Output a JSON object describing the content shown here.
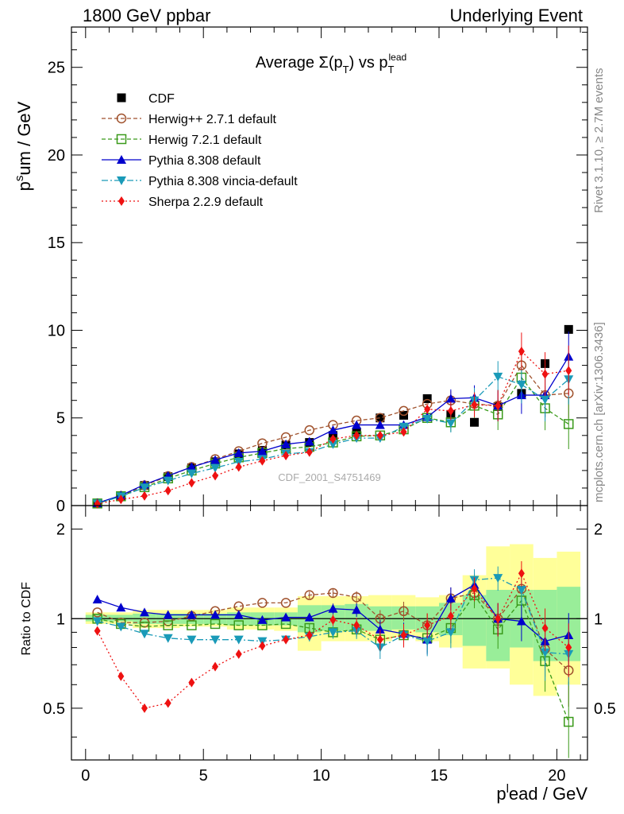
{
  "header": {
    "left": "1800 GeV ppbar",
    "right": "Underlying Event"
  },
  "side": {
    "rivet": "Rivet 3.1.10, ≥ 2.7M events",
    "mcplots": "mcplots.cern.ch [arXiv:1306.3436]"
  },
  "colors": {
    "cdf": "#000000",
    "herwigpp": "#a0522d",
    "herwig7": "#3a9a1a",
    "pythia": "#0000cc",
    "vincia": "#1a9ab8",
    "sherpa": "#ee1111",
    "band_outer": "#ffff99",
    "band_inner": "#99ee99"
  },
  "chart_data": [
    {
      "type": "line",
      "title": "Average Σ(p_T) vs p_T^lead",
      "watermark": "CDF_2001_S4751469",
      "ylabel": "p_T^sum / GeV",
      "ylim": [
        0,
        27.3
      ],
      "xlim": [
        -0.6,
        21.3
      ],
      "yticks": [
        0,
        5,
        10,
        15,
        20,
        25
      ],
      "legend_position": "top-left",
      "series": [
        {
          "name": "CDF",
          "key": "cdf",
          "x": [
            0.5,
            1.5,
            2.5,
            3.5,
            4.5,
            5.5,
            6.5,
            7.5,
            8.5,
            9.5,
            10.5,
            11.5,
            12.5,
            13.5,
            14.5,
            15.5,
            16.5,
            17.5,
            18.5,
            19.5,
            20.5
          ],
          "y": [
            0.12,
            0.55,
            1.15,
            1.65,
            2.15,
            2.5,
            2.95,
            3.15,
            3.45,
            3.6,
            4.0,
            4.2,
            5.0,
            5.15,
            6.1,
            5.2,
            4.75,
            5.65,
            6.4,
            8.1,
            10.05
          ]
        },
        {
          "name": "Herwig++ 2.7.1 default",
          "key": "herwigpp",
          "x": [
            0.5,
            1.5,
            2.5,
            3.5,
            4.5,
            5.5,
            6.5,
            7.5,
            8.5,
            9.5,
            10.5,
            11.5,
            12.5,
            13.5,
            14.5,
            15.5,
            16.5,
            17.5,
            18.5,
            19.5,
            20.5
          ],
          "y": [
            0.13,
            0.55,
            1.15,
            1.68,
            2.2,
            2.65,
            3.1,
            3.55,
            3.9,
            4.3,
            4.6,
            4.85,
            5.0,
            5.4,
            5.8,
            6.0,
            5.8,
            5.7,
            8.0,
            6.3,
            6.4
          ]
        },
        {
          "name": "Herwig 7.2.1 default",
          "key": "herwig7",
          "x": [
            0.5,
            1.5,
            2.5,
            3.5,
            4.5,
            5.5,
            6.5,
            7.5,
            8.5,
            9.5,
            10.5,
            11.5,
            12.5,
            13.5,
            14.5,
            15.5,
            16.5,
            17.5,
            18.5,
            19.5,
            20.5
          ],
          "y": [
            0.12,
            0.53,
            1.05,
            1.55,
            2.0,
            2.4,
            2.75,
            3.0,
            3.25,
            3.35,
            3.6,
            3.95,
            4.0,
            4.35,
            5.0,
            4.75,
            5.7,
            5.2,
            7.3,
            5.55,
            4.65
          ]
        },
        {
          "name": "Pythia 8.308 default",
          "key": "pythia",
          "x": [
            0.5,
            1.5,
            2.5,
            3.5,
            4.5,
            5.5,
            6.5,
            7.5,
            8.5,
            9.5,
            10.5,
            11.5,
            12.5,
            13.5,
            14.5,
            15.5,
            16.5,
            17.5,
            18.5,
            19.5,
            20.5
          ],
          "y": [
            0.14,
            0.58,
            1.2,
            1.7,
            2.2,
            2.6,
            3.0,
            3.1,
            3.5,
            3.65,
            4.3,
            4.6,
            4.6,
            4.6,
            5.05,
            6.1,
            6.15,
            5.7,
            6.3,
            6.3,
            8.5
          ]
        },
        {
          "name": "Pythia 8.308 vincia-default",
          "key": "vincia",
          "x": [
            0.5,
            1.5,
            2.5,
            3.5,
            4.5,
            5.5,
            6.5,
            7.5,
            8.5,
            9.5,
            10.5,
            11.5,
            12.5,
            13.5,
            14.5,
            15.5,
            16.5,
            17.5,
            18.5,
            19.5,
            20.5
          ],
          "y": [
            0.12,
            0.52,
            1.03,
            1.42,
            1.83,
            2.15,
            2.5,
            2.65,
            2.95,
            3.05,
            3.5,
            3.85,
            3.85,
            4.5,
            4.95,
            4.7,
            6.0,
            7.35,
            6.9,
            6.05,
            7.2
          ]
        },
        {
          "name": "Sherpa 2.2.9 default",
          "key": "sherpa",
          "x": [
            0.5,
            1.5,
            2.5,
            3.5,
            4.5,
            5.5,
            6.5,
            7.5,
            8.5,
            9.5,
            10.5,
            11.5,
            12.5,
            13.5,
            14.5,
            15.5,
            16.5,
            17.5,
            18.5,
            19.5,
            20.5
          ],
          "y": [
            0.1,
            0.35,
            0.55,
            0.85,
            1.3,
            1.7,
            2.2,
            2.55,
            2.85,
            3.05,
            3.8,
            4.0,
            4.0,
            4.2,
            5.5,
            5.4,
            5.75,
            5.7,
            8.8,
            7.5,
            7.7
          ]
        }
      ]
    },
    {
      "type": "line",
      "ylabel": "Ratio to CDF",
      "xlabel": "p_T^lead / GeV",
      "ylim": [
        0.335,
        2.4
      ],
      "xlim": [
        -0.6,
        21.3
      ],
      "yticks": [
        0.5,
        1,
        2
      ],
      "xticks": [
        0,
        5,
        10,
        15,
        20
      ],
      "bands": {
        "x": [
          0,
          1,
          2,
          3,
          4,
          5,
          6,
          7,
          8,
          9,
          10,
          11,
          12,
          13,
          14,
          15,
          16,
          17,
          18,
          19,
          20,
          21
        ],
        "outer_low": [
          0.96,
          0.96,
          0.93,
          0.93,
          0.94,
          0.94,
          0.92,
          0.92,
          0.91,
          0.78,
          0.84,
          0.84,
          0.84,
          0.87,
          0.84,
          0.8,
          0.68,
          0.68,
          0.6,
          0.55,
          0.6
        ],
        "outer_high": [
          1.05,
          1.05,
          1.07,
          1.07,
          1.07,
          1.07,
          1.09,
          1.09,
          1.09,
          1.19,
          1.19,
          1.19,
          1.2,
          1.2,
          1.18,
          1.2,
          1.4,
          1.75,
          1.78,
          1.6,
          1.68
        ],
        "inner_low": [
          0.98,
          0.98,
          0.96,
          0.96,
          0.96,
          0.96,
          0.95,
          0.95,
          0.95,
          0.9,
          0.91,
          0.91,
          0.91,
          0.92,
          0.9,
          0.88,
          0.81,
          0.72,
          0.8,
          0.72,
          0.72
        ],
        "inner_high": [
          1.03,
          1.03,
          1.04,
          1.04,
          1.04,
          1.04,
          1.05,
          1.05,
          1.05,
          1.11,
          1.11,
          1.12,
          1.1,
          1.1,
          1.1,
          1.13,
          1.2,
          1.25,
          1.25,
          1.25,
          1.28
        ]
      },
      "series": [
        {
          "name": "Herwig++ 2.7.1 default",
          "key": "herwigpp",
          "y": [
            1.05,
            0.97,
            0.97,
            0.98,
            1.02,
            1.06,
            1.1,
            1.13,
            1.13,
            1.2,
            1.22,
            1.18,
            1.0,
            1.06,
            0.95,
            1.17,
            1.22,
            1.0,
            1.26,
            0.79,
            0.67
          ]
        },
        {
          "name": "Herwig 7.2.1 default",
          "key": "herwig7",
          "y": [
            1.0,
            0.96,
            0.94,
            0.95,
            0.95,
            0.96,
            0.95,
            0.95,
            0.96,
            0.93,
            0.9,
            0.92,
            0.85,
            0.88,
            0.86,
            0.93,
            1.2,
            0.92,
            1.15,
            0.72,
            0.45
          ]
        },
        {
          "name": "Pythia 8.308 default",
          "key": "pythia",
          "y": [
            1.16,
            1.09,
            1.05,
            1.03,
            1.03,
            1.03,
            1.03,
            0.99,
            1.01,
            1.01,
            1.08,
            1.07,
            0.92,
            0.89,
            0.85,
            1.17,
            1.3,
            1.0,
            0.98,
            0.84,
            0.88
          ]
        },
        {
          "name": "Pythia 8.308 vincia-default",
          "key": "vincia",
          "y": [
            0.98,
            0.94,
            0.89,
            0.86,
            0.85,
            0.85,
            0.85,
            0.84,
            0.85,
            0.87,
            0.9,
            0.91,
            0.8,
            0.88,
            0.84,
            0.9,
            1.35,
            1.37,
            1.25,
            0.77,
            0.76
          ]
        },
        {
          "name": "Sherpa 2.2.9 default",
          "key": "sherpa",
          "y": [
            0.91,
            0.64,
            0.5,
            0.52,
            0.61,
            0.69,
            0.76,
            0.81,
            0.85,
            0.88,
            0.99,
            0.95,
            0.85,
            0.88,
            0.95,
            1.02,
            1.26,
            1.0,
            1.42,
            0.93,
            0.8
          ]
        }
      ]
    }
  ]
}
